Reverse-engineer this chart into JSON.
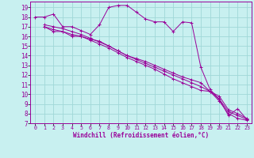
{
  "xlabel": "Windchill (Refroidissement éolien,°C)",
  "bg_color": "#c8f0f0",
  "grid_color": "#a0d8d8",
  "line_color": "#990099",
  "xlim": [
    -0.5,
    23.5
  ],
  "ylim": [
    7,
    19.6
  ],
  "xticks": [
    0,
    1,
    2,
    3,
    4,
    5,
    6,
    7,
    8,
    9,
    10,
    11,
    12,
    13,
    14,
    15,
    16,
    17,
    18,
    19,
    20,
    21,
    22,
    23
  ],
  "yticks": [
    7,
    8,
    9,
    10,
    11,
    12,
    13,
    14,
    15,
    16,
    17,
    18,
    19
  ],
  "line1_x": [
    0,
    1,
    2,
    3,
    4,
    5,
    6,
    7,
    8,
    9,
    10,
    11,
    12,
    13,
    14,
    15,
    16,
    17,
    18,
    19,
    20,
    21,
    22,
    23
  ],
  "line1_y": [
    18,
    18,
    18.3,
    17,
    17,
    16.6,
    16.2,
    17.2,
    19.0,
    19.2,
    19.2,
    18.5,
    17.8,
    17.5,
    17.5,
    16.5,
    17.5,
    17.4,
    12.8,
    10.5,
    9.5,
    7.8,
    8.5,
    7.4
  ],
  "line2_x": [
    1,
    2,
    3,
    4,
    5,
    6,
    7,
    8,
    9,
    10,
    11,
    12,
    13,
    14,
    15,
    16,
    17,
    18,
    19,
    20,
    21,
    22,
    23
  ],
  "line2_y": [
    17.0,
    16.5,
    16.5,
    16.0,
    16.0,
    15.7,
    15.5,
    15.0,
    14.5,
    14.0,
    13.7,
    13.4,
    13.0,
    12.6,
    12.2,
    11.8,
    11.5,
    11.2,
    10.3,
    9.3,
    8.0,
    7.5,
    7.3
  ],
  "line3_x": [
    1,
    2,
    3,
    4,
    5,
    6,
    7,
    8,
    9,
    10,
    11,
    12,
    13,
    14,
    15,
    16,
    17,
    18,
    19,
    20,
    21,
    22,
    23
  ],
  "line3_y": [
    17.0,
    16.7,
    16.5,
    16.2,
    16.0,
    15.6,
    15.2,
    14.8,
    14.3,
    13.8,
    13.4,
    13.0,
    12.6,
    12.1,
    11.6,
    11.2,
    10.8,
    10.4,
    10.3,
    9.5,
    8.2,
    7.8,
    7.4
  ],
  "line4_x": [
    1,
    2,
    3,
    4,
    5,
    6,
    7,
    8,
    9,
    10,
    11,
    12,
    13,
    14,
    15,
    16,
    17,
    18,
    19,
    20,
    21,
    22,
    23
  ],
  "line4_y": [
    17.2,
    17.0,
    16.8,
    16.5,
    16.2,
    15.8,
    15.4,
    15.0,
    14.5,
    14.0,
    13.6,
    13.2,
    12.8,
    12.4,
    12.0,
    11.6,
    11.2,
    10.8,
    10.3,
    9.8,
    8.4,
    8.0,
    7.5
  ]
}
